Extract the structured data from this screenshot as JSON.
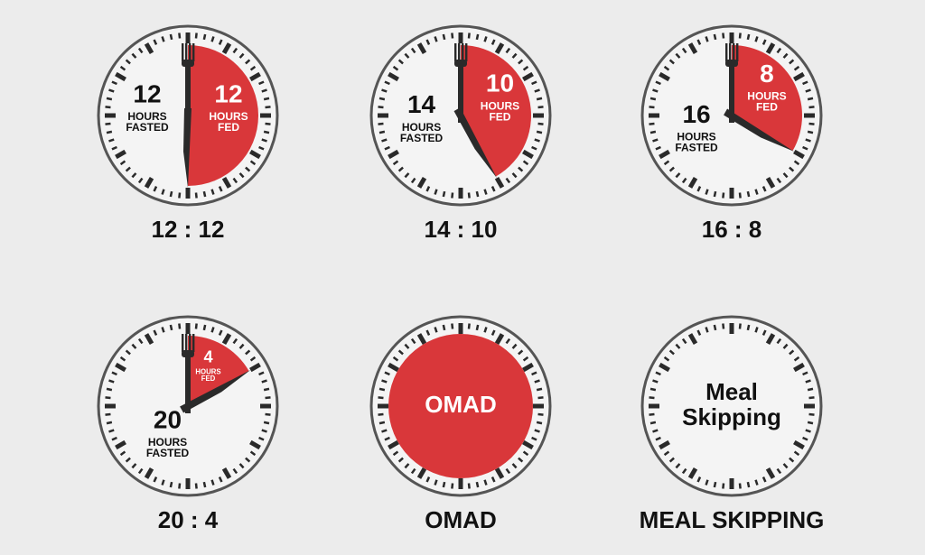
{
  "units": {
    "hours": "HOURS",
    "fasted": "FASTED",
    "fed": "FED"
  },
  "clocks": [
    {
      "fasted": 12,
      "fed": 12,
      "caption": "12 : 12"
    },
    {
      "fasted": 14,
      "fed": 10,
      "caption": "14 : 10"
    },
    {
      "fasted": 16,
      "fed": 8,
      "caption": "16 : 8"
    },
    {
      "fasted": 20,
      "fed": 4,
      "caption": "20 : 4"
    },
    {
      "center_text": [
        "OMAD"
      ],
      "caption": "OMAD"
    },
    {
      "center_text": [
        "Meal",
        "Skipping"
      ],
      "caption": "MEAL SKIPPING"
    }
  ]
}
